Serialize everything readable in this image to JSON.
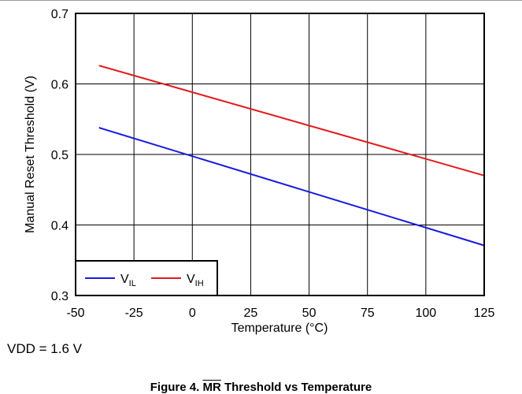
{
  "chart_data": {
    "type": "line",
    "xlabel": "Temperature (°C)",
    "ylabel": "Manual Reset Threshold (V)",
    "xlim": [
      -50,
      125
    ],
    "ylim": [
      0.3,
      0.7
    ],
    "xticks": [
      "-50",
      "-25",
      "0",
      "25",
      "50",
      "75",
      "100",
      "125"
    ],
    "yticks": [
      "0.3",
      "0.4",
      "0.5",
      "0.6",
      "0.7"
    ],
    "grid": true,
    "legend_position": "bottom-left",
    "series": [
      {
        "name": "V",
        "sub": "IL",
        "color": "#1a1adf",
        "x": [
          -40,
          125
        ],
        "y": [
          0.538,
          0.371
        ]
      },
      {
        "name": "V",
        "sub": "IH",
        "color": "#e11b1b",
        "x": [
          -40,
          125
        ],
        "y": [
          0.626,
          0.47
        ]
      }
    ]
  },
  "condition": "VDD = 1.6 V",
  "caption": {
    "prefix": "Figure 4. ",
    "overlined": "MR",
    "suffix": " Threshold vs Temperature"
  }
}
